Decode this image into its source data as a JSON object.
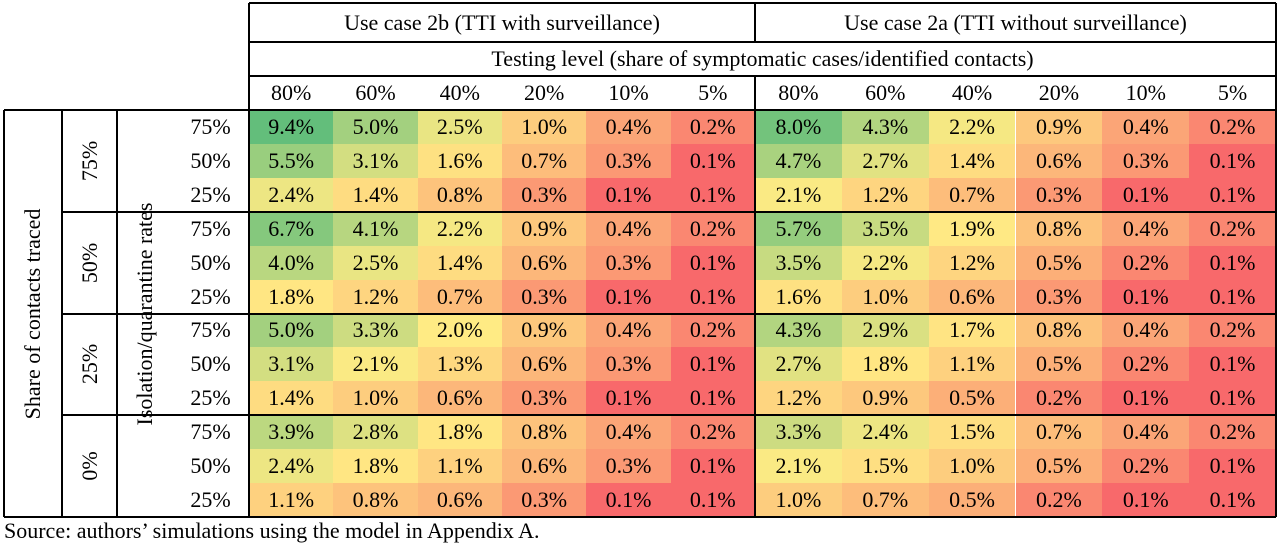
{
  "chart_data": {
    "type": "heatmap",
    "use_cases": [
      "Use case 2b (TTI with surveillance)",
      "Use case 2a (TTI without surveillance)"
    ],
    "testing_header": "Testing level (share of symptomatic cases/identified contacts)",
    "testing_levels": [
      "80%",
      "60%",
      "40%",
      "20%",
      "10%",
      "5%"
    ],
    "traced_label": "Share of contacts traced",
    "isolation_label": "Isolation/quarantine rates",
    "traced_levels": [
      "75%",
      "50%",
      "25%",
      "0%"
    ],
    "isolation_levels": [
      "75%",
      "50%",
      "25%"
    ],
    "values": [
      [
        "9.4%",
        "5.0%",
        "2.5%",
        "1.0%",
        "0.4%",
        "0.2%",
        "8.0%",
        "4.3%",
        "2.2%",
        "0.9%",
        "0.4%",
        "0.2%"
      ],
      [
        "5.5%",
        "3.1%",
        "1.6%",
        "0.7%",
        "0.3%",
        "0.1%",
        "4.7%",
        "2.7%",
        "1.4%",
        "0.6%",
        "0.3%",
        "0.1%"
      ],
      [
        "2.4%",
        "1.4%",
        "0.8%",
        "0.3%",
        "0.1%",
        "0.1%",
        "2.1%",
        "1.2%",
        "0.7%",
        "0.3%",
        "0.1%",
        "0.1%"
      ],
      [
        "6.7%",
        "4.1%",
        "2.2%",
        "0.9%",
        "0.4%",
        "0.2%",
        "5.7%",
        "3.5%",
        "1.9%",
        "0.8%",
        "0.4%",
        "0.2%"
      ],
      [
        "4.0%",
        "2.5%",
        "1.4%",
        "0.6%",
        "0.3%",
        "0.1%",
        "3.5%",
        "2.2%",
        "1.2%",
        "0.5%",
        "0.2%",
        "0.1%"
      ],
      [
        "1.8%",
        "1.2%",
        "0.7%",
        "0.3%",
        "0.1%",
        "0.1%",
        "1.6%",
        "1.0%",
        "0.6%",
        "0.3%",
        "0.1%",
        "0.1%"
      ],
      [
        "5.0%",
        "3.3%",
        "2.0%",
        "0.9%",
        "0.4%",
        "0.2%",
        "4.3%",
        "2.9%",
        "1.7%",
        "0.8%",
        "0.4%",
        "0.2%"
      ],
      [
        "3.1%",
        "2.1%",
        "1.3%",
        "0.6%",
        "0.3%",
        "0.1%",
        "2.7%",
        "1.8%",
        "1.1%",
        "0.5%",
        "0.2%",
        "0.1%"
      ],
      [
        "1.4%",
        "1.0%",
        "0.6%",
        "0.3%",
        "0.1%",
        "0.1%",
        "1.2%",
        "0.9%",
        "0.5%",
        "0.2%",
        "0.1%",
        "0.1%"
      ],
      [
        "3.9%",
        "2.8%",
        "1.8%",
        "0.8%",
        "0.4%",
        "0.2%",
        "3.3%",
        "2.4%",
        "1.5%",
        "0.7%",
        "0.4%",
        "0.2%"
      ],
      [
        "2.4%",
        "1.8%",
        "1.1%",
        "0.6%",
        "0.3%",
        "0.1%",
        "2.1%",
        "1.5%",
        "1.0%",
        "0.5%",
        "0.2%",
        "0.1%"
      ],
      [
        "1.1%",
        "0.8%",
        "0.6%",
        "0.3%",
        "0.1%",
        "0.1%",
        "1.0%",
        "0.7%",
        "0.5%",
        "0.2%",
        "0.1%",
        "0.1%"
      ]
    ],
    "color_scale": {
      "low": "#f8696b",
      "mid": "#ffeb84",
      "high": "#63be7b"
    }
  },
  "footnote": "Source: authors’ simulations using the model in Appendix A."
}
